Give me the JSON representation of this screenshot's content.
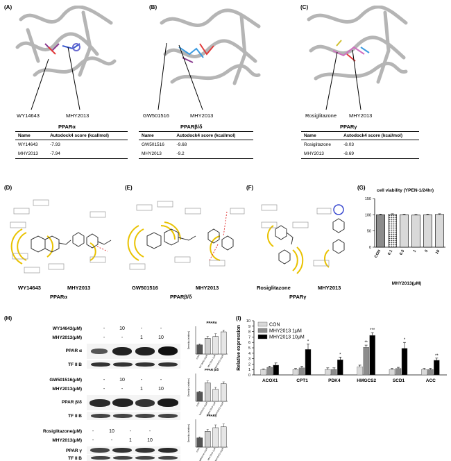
{
  "panel_letters": [
    "(A)",
    "(B)",
    "(C)",
    "(D)",
    "(E)",
    "(F)",
    "(G)",
    "(H)",
    "(I)"
  ],
  "docking": [
    {
      "left_label": "WY14643",
      "right_label": "MHY2013",
      "title": "PPARα",
      "header": [
        "Name",
        "Autodock4 score (kcal/mol)"
      ],
      "rows": [
        [
          "WY14643",
          "-7.93"
        ],
        [
          "MHY2013",
          "-7.94"
        ]
      ]
    },
    {
      "left_label": "GW501516",
      "right_label": "MHY2013",
      "title": "PPARβ/δ",
      "header": [
        "Name",
        "Autodock4 score (kcal/mol)"
      ],
      "rows": [
        [
          "GW501516",
          "-9.68"
        ],
        [
          "MHY2013",
          "-9.2"
        ]
      ]
    },
    {
      "left_label": "Rosiglitazone",
      "right_label": "MHY2013",
      "title": "PPARγ",
      "header": [
        "Name",
        "Autodock4 score (kcal/mol)"
      ],
      "rows": [
        [
          "Rosiglitazone",
          "-8.03"
        ],
        [
          "MHY2013",
          "-8.69"
        ]
      ]
    }
  ],
  "interaction": [
    {
      "left": "WY14643",
      "right": "MHY2013",
      "title": "PPARα"
    },
    {
      "left": "GW501516",
      "right": "MHY2013",
      "title": "PPARβ/δ"
    },
    {
      "left": "Rosiglitazone",
      "right": "MHY2013",
      "title": "PPARγ"
    }
  ],
  "western": [
    {
      "row1": "WY14643(μM)",
      "row1_marks": [
        "-",
        "10",
        "-",
        "-"
      ],
      "row2": "MHY2013(μM)",
      "row2_marks": [
        "-",
        "-",
        "1",
        "10"
      ],
      "target": "PPAR α",
      "loading": "TF II B",
      "mini_title": "PPARα"
    },
    {
      "row1": "GW501516(μM)",
      "row1_marks": [
        "-",
        "10",
        "-",
        "-"
      ],
      "row2": "MHY2013(μM)",
      "row2_marks": [
        "-",
        "-",
        "1",
        "10"
      ],
      "target": "PPAR β/δ",
      "loading": "TF II B",
      "mini_title": "PPAR β/δ"
    },
    {
      "row1": "Rosiglitazone(μM)",
      "row1_marks": [
        "-",
        "10",
        "-",
        "-"
      ],
      "row2": "MHY2013(μM)",
      "row2_marks": [
        "-",
        "-",
        "1",
        "10"
      ],
      "target": "PPAR γ",
      "loading": "TF II B",
      "mini_title": "PPARγ"
    }
  ],
  "chart_data": [
    {
      "id": "G",
      "type": "bar",
      "title": "cell viability (YPEN-1/24hr)",
      "xlabel": "MHY2013(μM)",
      "ylabel": "",
      "categories": [
        "CON",
        "0.1",
        "0.5",
        "1",
        "5",
        "10"
      ],
      "values": [
        100,
        101,
        100,
        99,
        100,
        101
      ],
      "errors": [
        2,
        2,
        2,
        2,
        2,
        2
      ],
      "ylim": [
        0,
        150
      ],
      "yticks": [
        0,
        50,
        100,
        150
      ],
      "colors": [
        "#8c8c8c",
        "#bdbdbd",
        "#d9d9d9",
        "#d9d9d9",
        "#d9d9d9",
        "#d9d9d9"
      ]
    },
    {
      "id": "I",
      "type": "bar",
      "title": "",
      "xlabel": "",
      "ylabel": "Relative expression",
      "categories": [
        "ACOX1",
        "CPT1",
        "PDK4",
        "HMGCS2",
        "SCD1",
        "ACC"
      ],
      "series": [
        {
          "name": "CON",
          "color": "#d9d9d9",
          "values": [
            1.0,
            1.0,
            1.0,
            1.5,
            1.0,
            1.0
          ],
          "errors": [
            0.1,
            0.2,
            0.3,
            0.3,
            0.2,
            0.2
          ],
          "marks": [
            "",
            "",
            "",
            "",
            "",
            ""
          ]
        },
        {
          "name": "MHY2013 1μM",
          "color": "#8c8c8c",
          "values": [
            1.4,
            1.3,
            1.0,
            5.1,
            1.2,
            1.0
          ],
          "errors": [
            0.2,
            0.3,
            0.3,
            0.4,
            0.2,
            0.2
          ],
          "marks": [
            "",
            "",
            "",
            "**",
            "",
            ""
          ]
        },
        {
          "name": "MHY2013 10μM",
          "color": "#000000",
          "values": [
            1.8,
            4.7,
            2.8,
            7.3,
            4.9,
            2.7
          ],
          "errors": [
            0.4,
            1.0,
            0.5,
            0.5,
            1.1,
            0.4
          ],
          "marks": [
            "",
            "*",
            "*",
            "***",
            "*",
            "**"
          ]
        }
      ],
      "ylim": [
        0,
        10
      ],
      "yticks": [
        0,
        1,
        2,
        3,
        4,
        5,
        6,
        7,
        8,
        9,
        10
      ],
      "legend": "top-left"
    },
    {
      "id": "H1",
      "type": "bar",
      "title": "PPARα",
      "ylabel": "Density (relative)",
      "categories": [
        "CON",
        "WY14643 10μM",
        "MHY2013 1μM",
        "MHY2013 10μM"
      ],
      "values": [
        1.0,
        1.7,
        1.9,
        2.4
      ],
      "errors": [
        0.1,
        0.2,
        0.3,
        0.2
      ],
      "ylim": [
        0,
        3
      ],
      "colors": [
        "#555555",
        "#cfcfcf",
        "#e6e6e6",
        "#e6e6e6"
      ]
    },
    {
      "id": "H2",
      "type": "bar",
      "title": "PPAR β/δ",
      "ylabel": "Density (relative)",
      "categories": [
        "CON",
        "GW501516 10μM",
        "MHY2013 1μM",
        "MHY2013 10μM"
      ],
      "values": [
        1.0,
        2.0,
        1.3,
        1.9
      ],
      "errors": [
        0.1,
        0.2,
        0.2,
        0.2
      ],
      "ylim": [
        0,
        3
      ],
      "colors": [
        "#555555",
        "#cfcfcf",
        "#e6e6e6",
        "#e6e6e6"
      ]
    },
    {
      "id": "H3",
      "type": "bar",
      "title": "PPARγ",
      "ylabel": "Density (relative)",
      "categories": [
        "CON",
        "Rosiglitazone 10μM",
        "MHY2013 1μM",
        "MHY2013 10μM"
      ],
      "values": [
        1.0,
        1.7,
        2.1,
        2.2
      ],
      "errors": [
        0.1,
        0.2,
        0.3,
        0.3
      ],
      "ylim": [
        0,
        3
      ],
      "colors": [
        "#555555",
        "#cfcfcf",
        "#e6e6e6",
        "#e6e6e6"
      ]
    }
  ]
}
